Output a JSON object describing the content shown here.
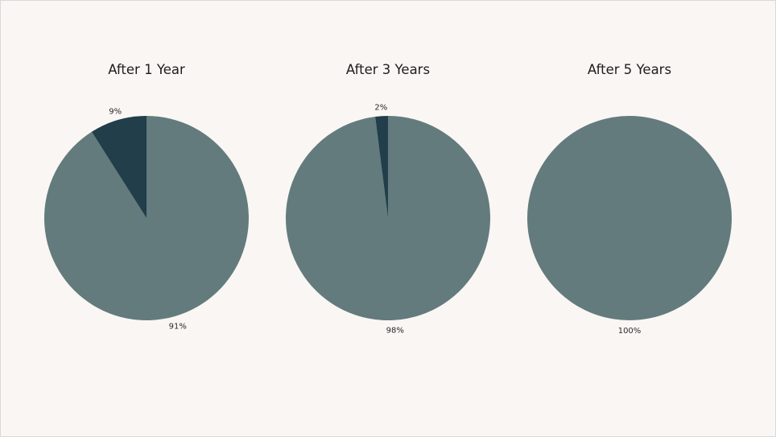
{
  "colors": {
    "background": "#faf6f3",
    "major_slice": "#637b7d",
    "minor_slice": "#213e4a"
  },
  "chart_data": [
    {
      "type": "pie",
      "title": "After 1 Year",
      "slices": [
        {
          "value": 91,
          "label": "91%",
          "color": "#637b7d"
        },
        {
          "value": 9,
          "label": "9%",
          "color": "#213e4a"
        }
      ]
    },
    {
      "type": "pie",
      "title": "After 3 Years",
      "slices": [
        {
          "value": 98,
          "label": "98%",
          "color": "#637b7d"
        },
        {
          "value": 2,
          "label": "2%",
          "color": "#213e4a"
        }
      ]
    },
    {
      "type": "pie",
      "title": "After 5 Years",
      "slices": [
        {
          "value": 100,
          "label": "100%",
          "color": "#637b7d"
        }
      ]
    }
  ]
}
